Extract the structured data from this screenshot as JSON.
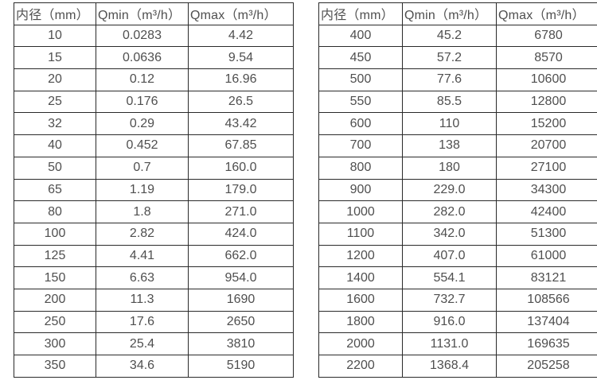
{
  "colors": {
    "background": "#ffffff",
    "border": "#2a2a2a",
    "text": "#4f4f4f"
  },
  "tables": [
    {
      "name": "flow-spec-table-small-diameters",
      "headers": [
        "内径（mm）",
        "Qmin（m³/h）",
        "Qmax（m³/h）"
      ],
      "rows": [
        [
          "10",
          "0.0283",
          "4.42"
        ],
        [
          "15",
          "0.0636",
          "9.54"
        ],
        [
          "20",
          "0.12",
          "16.96"
        ],
        [
          "25",
          "0.176",
          "26.5"
        ],
        [
          "32",
          "0.29",
          "43.42"
        ],
        [
          "40",
          "0.452",
          "67.85"
        ],
        [
          "50",
          "0.7",
          "160.0"
        ],
        [
          "65",
          "1.19",
          "179.0"
        ],
        [
          "80",
          "1.8",
          "271.0"
        ],
        [
          "100",
          "2.82",
          "424.0"
        ],
        [
          "125",
          "4.41",
          "662.0"
        ],
        [
          "150",
          "6.63",
          "954.0"
        ],
        [
          "200",
          "11.3",
          "1690"
        ],
        [
          "250",
          "17.6",
          "2650"
        ],
        [
          "300",
          "25.4",
          "3810"
        ],
        [
          "350",
          "34.6",
          "5190"
        ]
      ]
    },
    {
      "name": "flow-spec-table-large-diameters",
      "headers": [
        "内径（mm）",
        "Qmin（m³/h）",
        "Qmax（m³/h）"
      ],
      "rows": [
        [
          "400",
          "45.2",
          "6780"
        ],
        [
          "450",
          "57.2",
          "8570"
        ],
        [
          "500",
          "77.6",
          "10600"
        ],
        [
          "550",
          "85.5",
          "12800"
        ],
        [
          "600",
          "110",
          "15200"
        ],
        [
          "700",
          "138",
          "20700"
        ],
        [
          "800",
          "180",
          "27100"
        ],
        [
          "900",
          "229.0",
          "34300"
        ],
        [
          "1000",
          "282.0",
          "42400"
        ],
        [
          "1100",
          "342.0",
          "51300"
        ],
        [
          "1200",
          "407.0",
          "61000"
        ],
        [
          "1400",
          "554.1",
          "83121"
        ],
        [
          "1600",
          "732.7",
          "108566"
        ],
        [
          "1800",
          "916.0",
          "137404"
        ],
        [
          "2000",
          "1131.0",
          "169635"
        ],
        [
          "2200",
          "1368.4",
          "205258"
        ]
      ]
    }
  ],
  "cell_names": [
    "diameter-cell",
    "qmin-cell",
    "qmax-cell"
  ],
  "header_names": [
    "diameter-column-header",
    "qmin-column-header",
    "qmax-column-header"
  ]
}
